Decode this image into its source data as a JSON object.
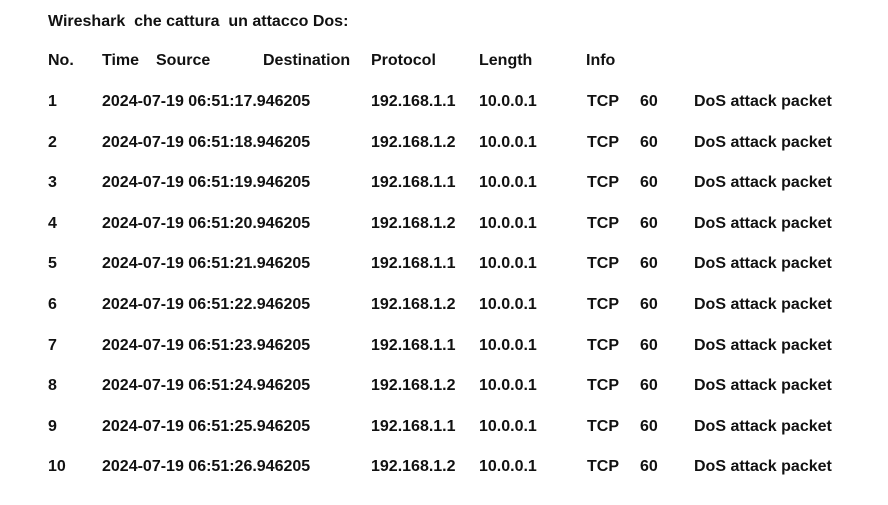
{
  "title": "Wireshark  che cattura  un attacco Dos:",
  "header": {
    "no": "No.",
    "time": "Time",
    "source": "Source",
    "destination": "Destination",
    "protocol": "Protocol",
    "length": "Length",
    "info": "Info"
  },
  "rows": [
    {
      "no": "1",
      "time": "2024-07-19 06:51:17.946205",
      "source": "192.168.1.1",
      "destination": "10.0.0.1",
      "protocol": "TCP",
      "length": "60",
      "info": "DoS attack packet"
    },
    {
      "no": "2",
      "time": "2024-07-19 06:51:18.946205",
      "source": "192.168.1.2",
      "destination": "10.0.0.1",
      "protocol": "TCP",
      "length": "60",
      "info": "DoS attack packet"
    },
    {
      "no": "3",
      "time": "2024-07-19 06:51:19.946205",
      "source": "192.168.1.1",
      "destination": "10.0.0.1",
      "protocol": "TCP",
      "length": "60",
      "info": "DoS attack packet"
    },
    {
      "no": "4",
      "time": "2024-07-19 06:51:20.946205",
      "source": "192.168.1.2",
      "destination": "10.0.0.1",
      "protocol": "TCP",
      "length": "60",
      "info": "DoS attack packet"
    },
    {
      "no": "5",
      "time": "2024-07-19 06:51:21.946205",
      "source": "192.168.1.1",
      "destination": "10.0.0.1",
      "protocol": "TCP",
      "length": "60",
      "info": "DoS attack packet"
    },
    {
      "no": "6",
      "time": "2024-07-19 06:51:22.946205",
      "source": "192.168.1.2",
      "destination": "10.0.0.1",
      "protocol": "TCP",
      "length": "60",
      "info": "DoS attack packet"
    },
    {
      "no": "7",
      "time": "2024-07-19 06:51:23.946205",
      "source": "192.168.1.1",
      "destination": "10.0.0.1",
      "protocol": "TCP",
      "length": "60",
      "info": "DoS attack packet"
    },
    {
      "no": "8",
      "time": "2024-07-19 06:51:24.946205",
      "source": "192.168.1.2",
      "destination": "10.0.0.1",
      "protocol": "TCP",
      "length": "60",
      "info": "DoS attack packet"
    },
    {
      "no": "9",
      "time": "2024-07-19 06:51:25.946205",
      "source": "192.168.1.1",
      "destination": "10.0.0.1",
      "protocol": "TCP",
      "length": "60",
      "info": "DoS attack packet"
    },
    {
      "no": "10",
      "time": "2024-07-19 06:51:26.946205",
      "source": "192.168.1.2",
      "destination": "10.0.0.1",
      "protocol": "TCP",
      "length": "60",
      "info": "DoS attack packet"
    }
  ]
}
